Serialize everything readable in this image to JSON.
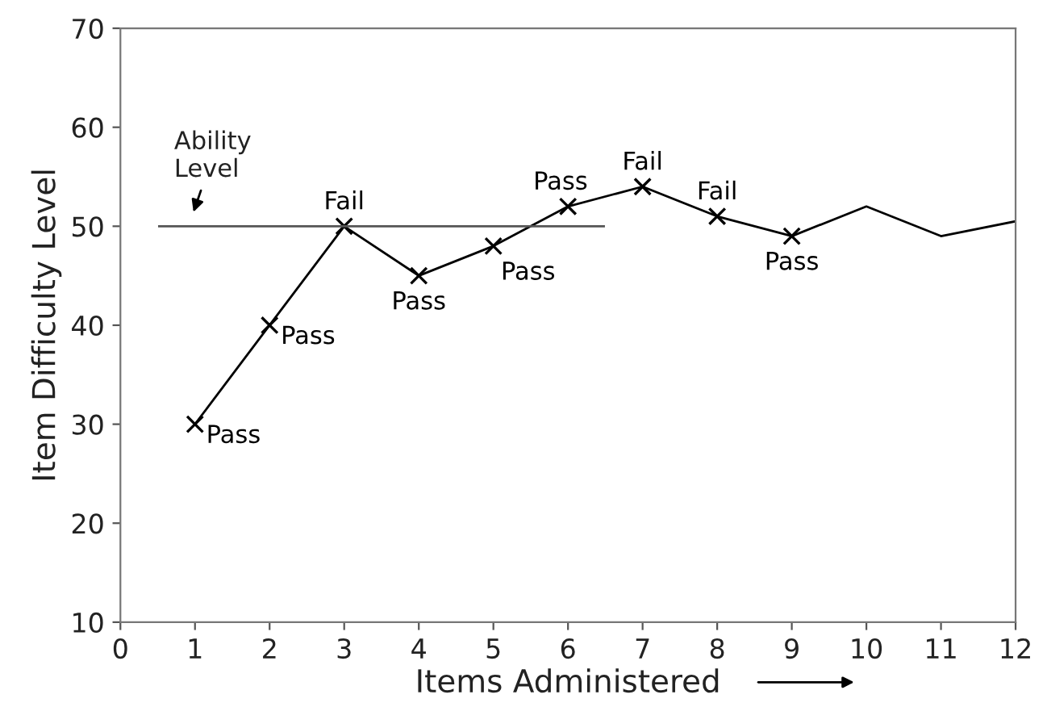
{
  "chart_data": {
    "type": "line",
    "xlabel": "Items Administered",
    "ylabel": "Item Difficulty Level",
    "series": [
      {
        "color": "#000000",
        "x": [
          1,
          2,
          3,
          4,
          5,
          6,
          7,
          8,
          9
        ],
        "values": [
          30,
          40,
          50,
          45,
          48,
          52,
          54,
          51,
          49
        ],
        "marker": "cross"
      },
      {
        "color": "#000000",
        "x": [
          9,
          10,
          11,
          12
        ],
        "values": [
          49,
          52,
          49,
          50.5
        ],
        "marker": "none"
      }
    ],
    "ref_lines": [
      {
        "axis": "y",
        "value": 50,
        "label": "Ability\nLevel",
        "color": "#555555"
      }
    ],
    "annotations": [
      {
        "text": "Pass",
        "x": 1,
        "y": 30
      },
      {
        "text": "Pass",
        "x": 2,
        "y": 40
      },
      {
        "text": "Fail",
        "x": 3,
        "y": 50
      },
      {
        "text": "Pass",
        "x": 4,
        "y": 45
      },
      {
        "text": "Pass",
        "x": 5,
        "y": 48
      },
      {
        "text": "Pass",
        "x": 6,
        "y": 52
      },
      {
        "text": "Fail",
        "x": 7,
        "y": 54
      },
      {
        "text": "Fail",
        "x": 8,
        "y": 51
      },
      {
        "text": "Pass",
        "x": 9,
        "y": 49
      }
    ],
    "xlim": [
      0,
      12
    ],
    "xticks": [
      0,
      1,
      2,
      3,
      4,
      5,
      6,
      7,
      8,
      9,
      10,
      11,
      12
    ],
    "ylim": [
      10,
      70
    ],
    "yticks": [
      10,
      20,
      30,
      40,
      50,
      60,
      70
    ],
    "grid": false
  }
}
